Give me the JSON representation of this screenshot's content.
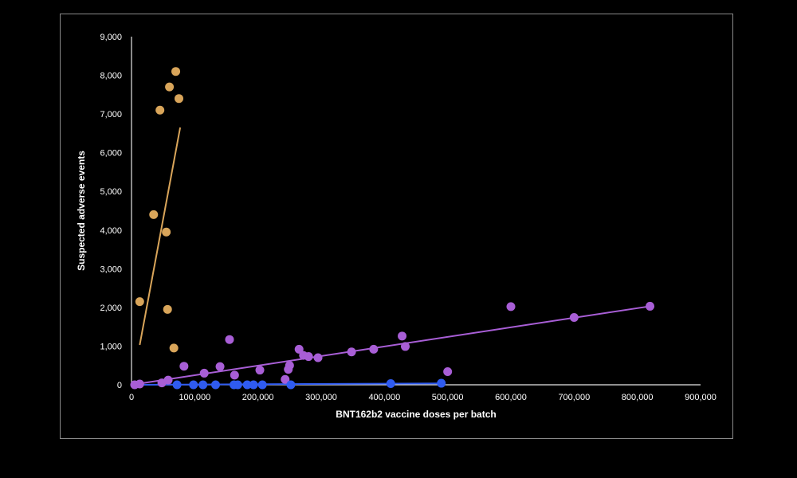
{
  "chart_data": {
    "type": "scatter",
    "title": "",
    "xlabel": "BNT162b2 vaccine doses per batch",
    "ylabel": "Suspected adverse events",
    "xlim": [
      0,
      900000
    ],
    "ylim": [
      0,
      9000
    ],
    "x_ticks": [
      0,
      100000,
      200000,
      300000,
      400000,
      500000,
      600000,
      700000,
      800000,
      900000
    ],
    "x_tick_labels": [
      "0",
      "100,000",
      "200,000",
      "300,000",
      "400,000",
      "500,000",
      "600,000",
      "700,000",
      "800,000",
      "900,000"
    ],
    "y_ticks": [
      0,
      1000,
      2000,
      3000,
      4000,
      5000,
      6000,
      7000,
      8000,
      9000
    ],
    "y_tick_labels": [
      "0",
      "1,000",
      "2,000",
      "3,000",
      "4,000",
      "5,000",
      "6,000",
      "7,000",
      "8,000",
      "9,000"
    ],
    "grid": false,
    "legend": "none",
    "series": [
      {
        "color": "#d9a55a",
        "points": [
          [
            13000,
            2150
          ],
          [
            35000,
            4400
          ],
          [
            45000,
            7100
          ],
          [
            55000,
            3950
          ],
          [
            57000,
            1950
          ],
          [
            60000,
            7700
          ],
          [
            67000,
            950
          ],
          [
            70000,
            8100
          ],
          [
            75000,
            7400
          ]
        ],
        "trendline": [
          [
            13000,
            1030
          ],
          [
            77000,
            6650
          ]
        ]
      },
      {
        "color": "#a85ed6",
        "points": [
          [
            5000,
            0
          ],
          [
            13000,
            20
          ],
          [
            48000,
            50
          ],
          [
            58000,
            120
          ],
          [
            83000,
            480
          ],
          [
            115000,
            300
          ],
          [
            140000,
            470
          ],
          [
            155000,
            1170
          ],
          [
            163000,
            250
          ],
          [
            203000,
            380
          ],
          [
            243000,
            140
          ],
          [
            248000,
            400
          ],
          [
            250000,
            500
          ],
          [
            265000,
            920
          ],
          [
            272000,
            760
          ],
          [
            280000,
            730
          ],
          [
            295000,
            700
          ],
          [
            348000,
            850
          ],
          [
            383000,
            920
          ],
          [
            428000,
            1260
          ],
          [
            433000,
            990
          ],
          [
            500000,
            340
          ],
          [
            600000,
            2020
          ],
          [
            700000,
            1740
          ],
          [
            820000,
            2030
          ]
        ],
        "trendline": [
          [
            0,
            0
          ],
          [
            820000,
            2030
          ]
        ]
      },
      {
        "color": "#2f5bf0",
        "points": [
          [
            72000,
            0
          ],
          [
            98000,
            0
          ],
          [
            113000,
            0
          ],
          [
            133000,
            0
          ],
          [
            162000,
            0
          ],
          [
            168000,
            0
          ],
          [
            183000,
            0
          ],
          [
            193000,
            0
          ],
          [
            207000,
            0
          ],
          [
            252000,
            0
          ],
          [
            410000,
            30
          ],
          [
            490000,
            40
          ]
        ],
        "trendline": [
          [
            0,
            0
          ],
          [
            492000,
            35
          ]
        ]
      }
    ]
  }
}
